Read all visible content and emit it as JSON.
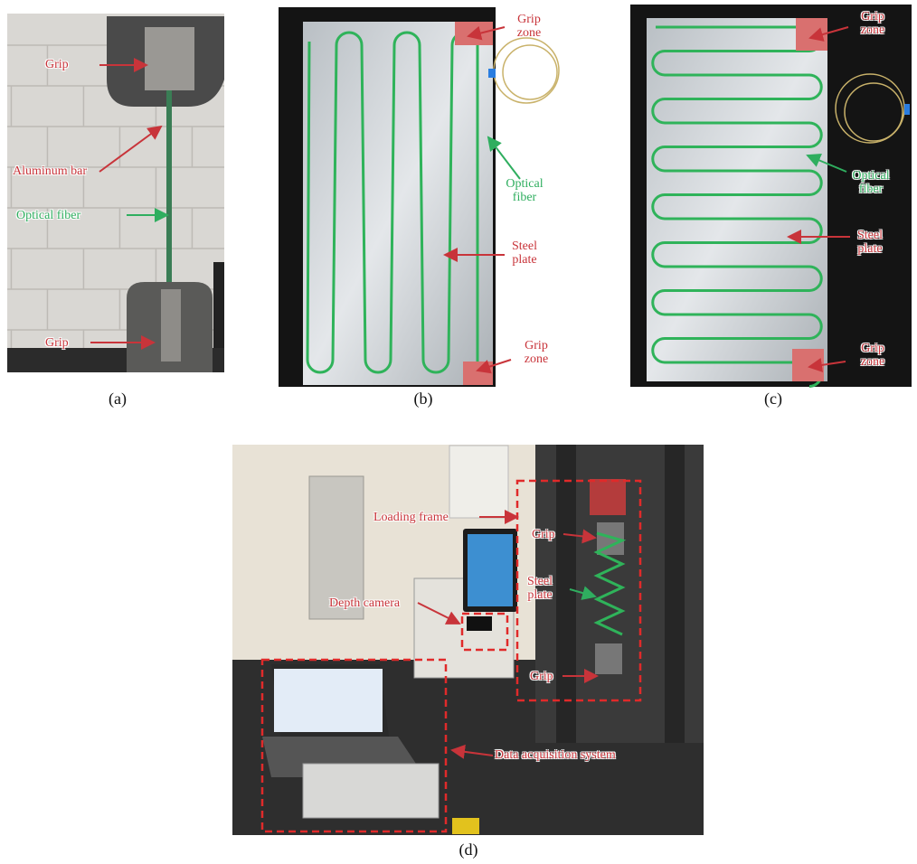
{
  "panels": [
    {
      "caption": "(a)",
      "labels": [
        "Grip",
        "Aluminum bar",
        "Optical fiber",
        "Grip"
      ]
    },
    {
      "caption": "(b)",
      "labels": [
        "Grip zone",
        "Optical fiber",
        "Steel plate",
        "Grip zone"
      ]
    },
    {
      "caption": "(c)",
      "labels": [
        "Grip zone",
        "Optical fiber",
        "Steel plate",
        "Grip zone"
      ]
    },
    {
      "caption": "(d)",
      "labels": [
        "Loading frame",
        "Grip",
        "Steel plate",
        "Depth camera",
        "Grip",
        "Data acquisition system"
      ]
    }
  ]
}
